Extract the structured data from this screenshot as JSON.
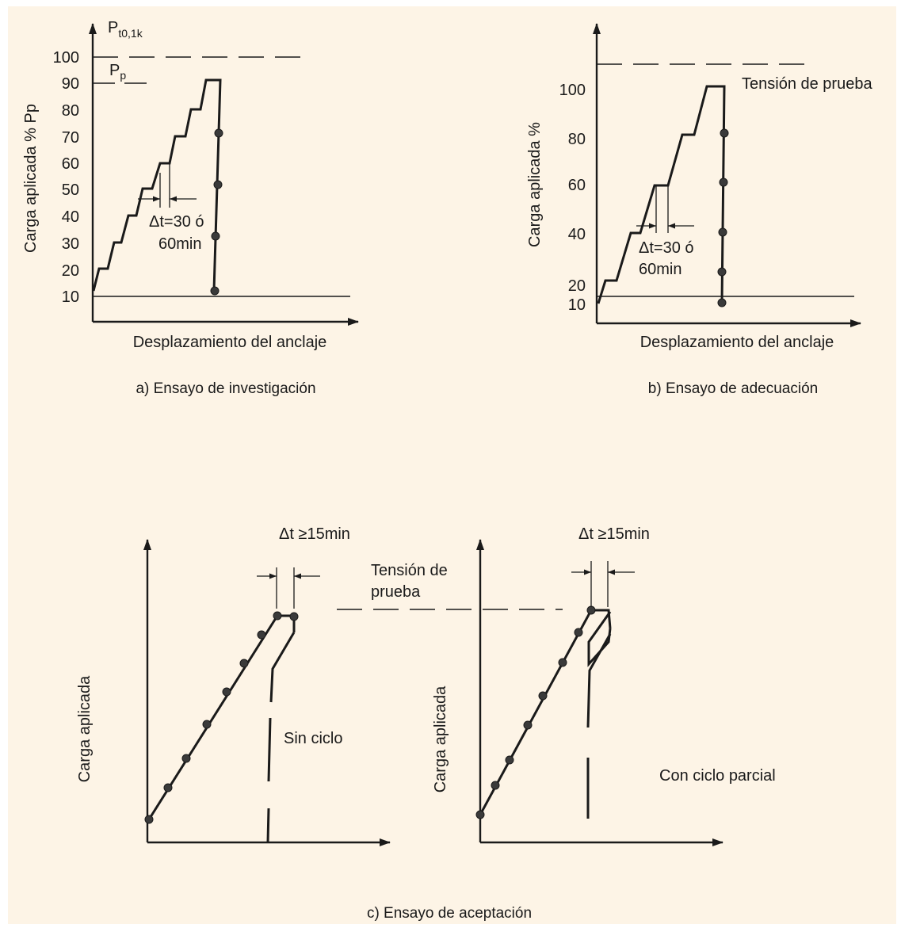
{
  "panel_a": {
    "top_symbol": "P",
    "top_symbol_sub": "t0,1k",
    "pp_symbol": "P",
    "pp_symbol_sub": "p",
    "ylabel": "Carga aplicada % Pp",
    "xlabel": "Desplazamiento del anclaje",
    "ticks": [
      "100",
      "90",
      "80",
      "70",
      "60",
      "50",
      "40",
      "30",
      "20",
      "10"
    ],
    "dt_line1": "Δt=30 ó",
    "dt_line2": "60min",
    "caption": "a) Ensayo de investigación"
  },
  "panel_b": {
    "ylabel": "Carga aplicada %",
    "xlabel": "Desplazamiento del anclaje",
    "ticks": [
      "100",
      "80",
      "60",
      "40",
      "20",
      "10"
    ],
    "proof_label": "Tensión de prueba",
    "dt_line1": "Δt=30 ó",
    "dt_line2": "60min",
    "caption": "b) Ensayo de adecuación"
  },
  "panel_c": {
    "dt_left": "Δt ≥15min",
    "dt_right": "Δt ≥15min",
    "proof_line1": "Tensión de",
    "proof_line2": "prueba",
    "ylabel_left": "Carga aplicada",
    "ylabel_right": "Carga aplicada",
    "no_cycle": "Sin ciclo",
    "partial_cycle": "Con ciclo parcial",
    "caption": "c) Ensayo de aceptación"
  }
}
